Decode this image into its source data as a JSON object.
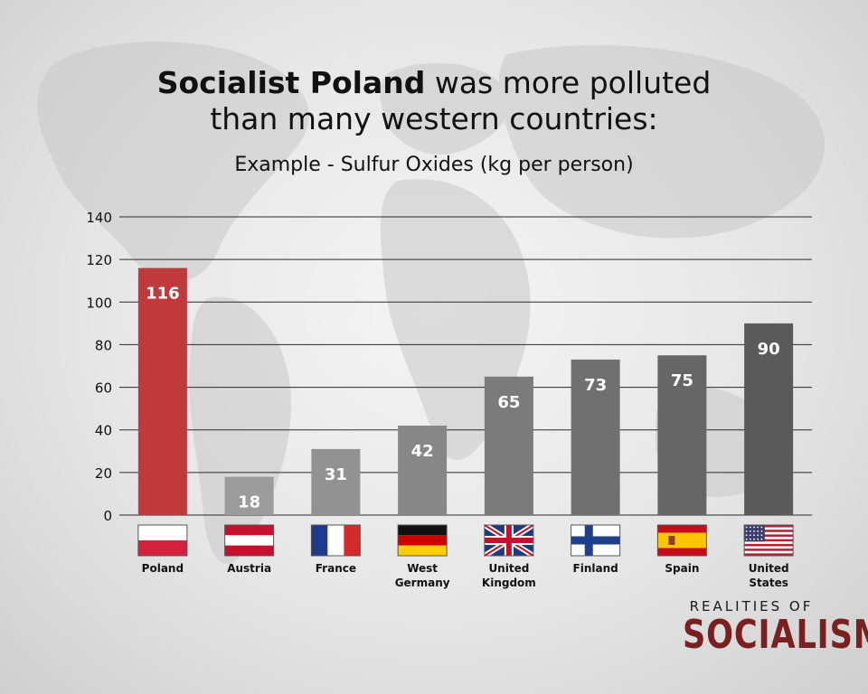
{
  "title": {
    "bold": "Socialist Poland",
    "line1_rest": " was more polluted",
    "line2": "than many western countries:"
  },
  "subtitle": "Example - Sulfur Oxides (kg per person)",
  "chart_data": {
    "type": "bar",
    "title": "Socialist Poland was more polluted than many western countries:",
    "subtitle": "Example - Sulfur Oxides (kg per person)",
    "xlabel": "",
    "ylabel": "",
    "ylim": [
      0,
      140
    ],
    "yticks": [
      0,
      20,
      40,
      60,
      80,
      100,
      120,
      140
    ],
    "grid": true,
    "categories": [
      {
        "lines": [
          "Poland"
        ],
        "flag": "poland-flag"
      },
      {
        "lines": [
          "Austria"
        ],
        "flag": "austria-flag"
      },
      {
        "lines": [
          "France"
        ],
        "flag": "france-flag"
      },
      {
        "lines": [
          "West",
          "Germany"
        ],
        "flag": "west-germany-flag"
      },
      {
        "lines": [
          "United",
          "Kingdom"
        ],
        "flag": "united-kingdom-flag"
      },
      {
        "lines": [
          "Finland"
        ],
        "flag": "finland-flag"
      },
      {
        "lines": [
          "Spain"
        ],
        "flag": "spain-flag"
      },
      {
        "lines": [
          "United",
          "States"
        ],
        "flag": "united-states-flag"
      }
    ],
    "values": [
      116,
      18,
      31,
      42,
      65,
      73,
      75,
      90
    ],
    "data_labels": [
      "116",
      "18",
      "31",
      "42",
      "65",
      "73",
      "75",
      "90"
    ],
    "colors": {
      "highlight": "#c0393b",
      "bars": [
        "#c0393b",
        "#9c9c9c",
        "#929292",
        "#878787",
        "#7b7b7b",
        "#707070",
        "#666666",
        "#5a5a5a"
      ],
      "grid": "#2a2a2a",
      "label_text": "#ffffff"
    }
  },
  "logo": {
    "top": "REALITIES OF",
    "main": "SOCIALISM"
  }
}
